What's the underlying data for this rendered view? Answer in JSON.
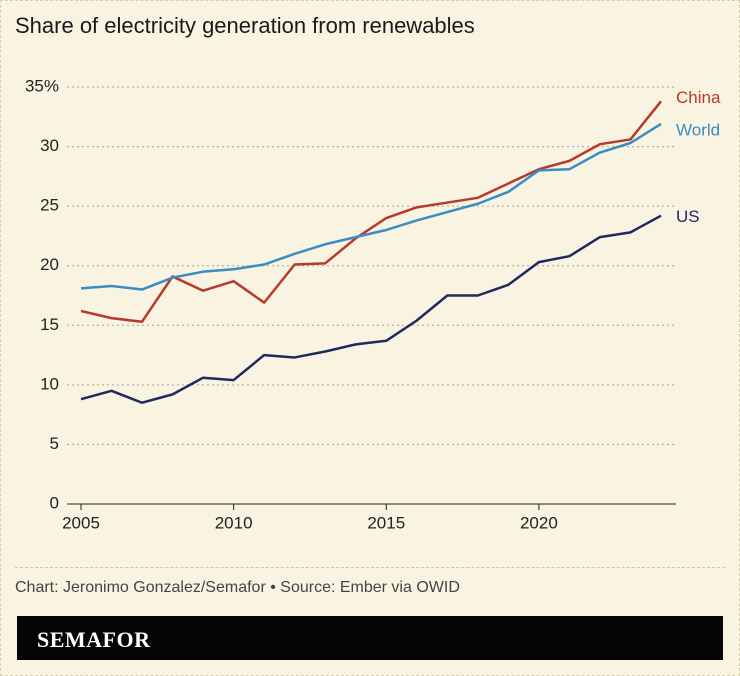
{
  "chart_data": {
    "type": "line",
    "title": "Share of electricity generation from renewables",
    "credit": "Chart: Jeronimo Gonzalez/Semafor • Source: Ember via OWID",
    "brand": "SEMAFOR",
    "x": [
      2005,
      2006,
      2007,
      2008,
      2009,
      2010,
      2011,
      2012,
      2013,
      2014,
      2015,
      2016,
      2017,
      2018,
      2019,
      2020,
      2021,
      2022,
      2023,
      2024
    ],
    "xlim": [
      2005,
      2024
    ],
    "xticks": [
      2005,
      2010,
      2015,
      2020
    ],
    "ylim": [
      0,
      35
    ],
    "yticks": [
      0,
      5,
      10,
      15,
      20,
      25,
      30,
      {
        "value": 35,
        "label": "35%"
      }
    ],
    "grid": true,
    "series": [
      {
        "name": "China",
        "color": "#b8392a",
        "values": [
          16.2,
          15.6,
          15.3,
          19.1,
          17.9,
          18.7,
          16.9,
          20.1,
          20.2,
          22.3,
          24.0,
          24.9,
          25.3,
          25.7,
          26.9,
          28.1,
          28.8,
          30.2,
          30.6,
          33.8
        ]
      },
      {
        "name": "World",
        "color": "#3a8cc4",
        "values": [
          18.1,
          18.3,
          18.0,
          19.0,
          19.5,
          19.7,
          20.1,
          21.0,
          21.8,
          22.4,
          23.0,
          23.8,
          24.5,
          25.2,
          26.2,
          28.0,
          28.1,
          29.5,
          30.3,
          31.9
        ]
      },
      {
        "name": "US",
        "color": "#1e2960",
        "values": [
          8.8,
          9.5,
          8.5,
          9.2,
          10.6,
          10.4,
          12.5,
          12.3,
          12.8,
          13.4,
          13.7,
          15.4,
          17.5,
          17.5,
          18.4,
          20.3,
          20.8,
          22.4,
          22.8,
          24.2
        ]
      }
    ]
  }
}
